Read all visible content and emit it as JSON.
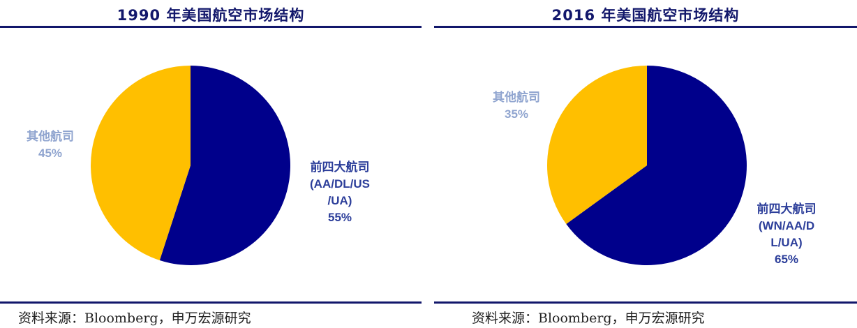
{
  "source_text": "资料来源：Bloomberg，申万宏源研究",
  "colors": {
    "major": "#00008b",
    "minor": "#ffbf00",
    "title": "#12176b"
  },
  "chart_data": [
    {
      "type": "pie",
      "title": "1990 年美国航空市场结构",
      "slices": [
        {
          "label": "前四大航司",
          "sublabel": [
            "(AA/DL/US",
            "/UA)"
          ],
          "value": 55,
          "value_label": "55%",
          "color": "#00008b"
        },
        {
          "label": "其他航司",
          "sublabel": [],
          "value": 45,
          "value_label": "45%",
          "color": "#ffbf00"
        }
      ]
    },
    {
      "type": "pie",
      "title": "2016 年美国航空市场结构",
      "slices": [
        {
          "label": "前四大航司",
          "sublabel": [
            "(WN/AA/D",
            "L/UA)"
          ],
          "value": 65,
          "value_label": "65%",
          "color": "#00008b"
        },
        {
          "label": "其他航司",
          "sublabel": [],
          "value": 35,
          "value_label": "35%",
          "color": "#ffbf00"
        }
      ]
    }
  ]
}
